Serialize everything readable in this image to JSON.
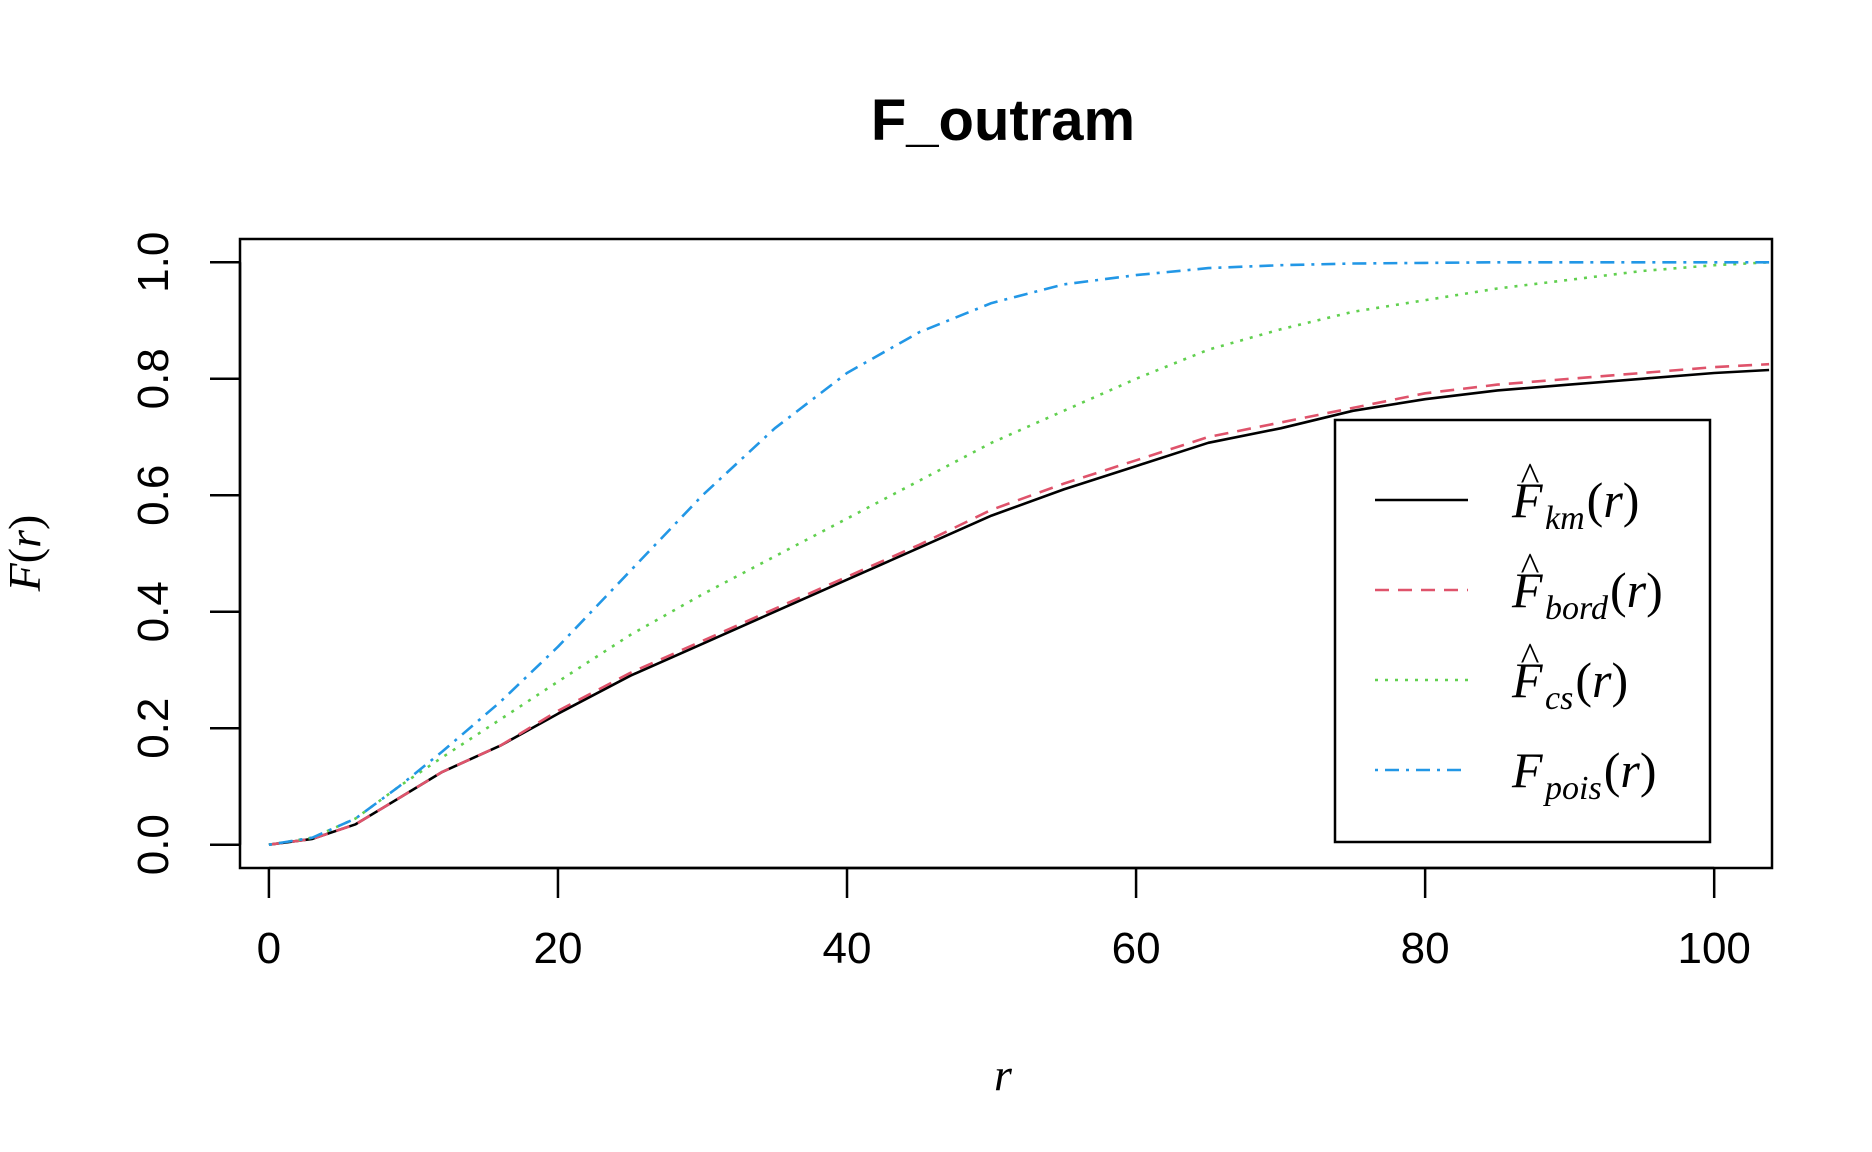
{
  "chart_data": {
    "type": "line",
    "title": "F_outram",
    "xlabel": "r",
    "ylabel": "F(r)",
    "xlim": [
      -2,
      104
    ],
    "ylim": [
      -0.04,
      1.04
    ],
    "x_ticks": [
      0,
      20,
      40,
      60,
      80,
      100
    ],
    "y_ticks": [
      0.0,
      0.2,
      0.4,
      0.6,
      0.8,
      1.0
    ],
    "x_tick_labels": [
      "0",
      "20",
      "40",
      "60",
      "80",
      "100"
    ],
    "y_tick_labels": [
      "0.0",
      "0.2",
      "0.4",
      "0.6",
      "0.8",
      "1.0"
    ],
    "legend_position": "bottom-right",
    "series": [
      {
        "name": "F̂km(r)",
        "label": {
          "main": "F",
          "hat": true,
          "sub": "km"
        },
        "color": "#000000",
        "style": "solid",
        "x": [
          0,
          3,
          6,
          9,
          12,
          16,
          20,
          25,
          30,
          35,
          40,
          45,
          50,
          55,
          60,
          65,
          70,
          75,
          80,
          85,
          90,
          95,
          100,
          103.8
        ],
        "y": [
          0.0,
          0.01,
          0.035,
          0.08,
          0.125,
          0.17,
          0.225,
          0.29,
          0.345,
          0.4,
          0.455,
          0.51,
          0.565,
          0.61,
          0.65,
          0.69,
          0.715,
          0.745,
          0.765,
          0.78,
          0.79,
          0.8,
          0.81,
          0.815
        ]
      },
      {
        "name": "F̂bord(r)",
        "label": {
          "main": "F",
          "hat": true,
          "sub": "bord"
        },
        "color": "#df536b",
        "style": "dashed",
        "x": [
          0,
          3,
          6,
          9,
          12,
          16,
          20,
          25,
          30,
          35,
          40,
          45,
          50,
          55,
          60,
          65,
          70,
          75,
          80,
          85,
          90,
          95,
          100,
          103.8
        ],
        "y": [
          0.0,
          0.01,
          0.035,
          0.08,
          0.125,
          0.17,
          0.23,
          0.295,
          0.35,
          0.405,
          0.46,
          0.515,
          0.575,
          0.62,
          0.66,
          0.7,
          0.725,
          0.75,
          0.775,
          0.79,
          0.8,
          0.81,
          0.82,
          0.825
        ]
      },
      {
        "name": "F̂cs(r)",
        "label": {
          "main": "F",
          "hat": true,
          "sub": "cs"
        },
        "color": "#61d04f",
        "style": "dotted",
        "x": [
          0,
          3,
          6,
          9,
          12,
          16,
          20,
          25,
          30,
          35,
          40,
          45,
          50,
          55,
          60,
          65,
          70,
          75,
          80,
          85,
          90,
          95,
          100,
          103.8
        ],
        "y": [
          0.0,
          0.012,
          0.045,
          0.1,
          0.15,
          0.215,
          0.28,
          0.36,
          0.43,
          0.495,
          0.56,
          0.625,
          0.69,
          0.745,
          0.8,
          0.85,
          0.885,
          0.915,
          0.935,
          0.955,
          0.97,
          0.985,
          0.995,
          1.0
        ]
      },
      {
        "name": "Fpois(r)",
        "label": {
          "main": "F",
          "hat": false,
          "sub": "pois"
        },
        "color": "#2297e6",
        "style": "dotdash",
        "x": [
          0,
          3,
          6,
          9,
          12,
          16,
          20,
          25,
          30,
          35,
          40,
          45,
          50,
          55,
          60,
          65,
          70,
          75,
          80,
          85,
          90,
          95,
          100,
          103.8
        ],
        "y": [
          0.0,
          0.012,
          0.045,
          0.1,
          0.16,
          0.245,
          0.34,
          0.47,
          0.6,
          0.715,
          0.81,
          0.88,
          0.93,
          0.962,
          0.978,
          0.99,
          0.995,
          0.998,
          0.999,
          1.0,
          1.0,
          1.0,
          1.0,
          1.0
        ]
      }
    ]
  }
}
